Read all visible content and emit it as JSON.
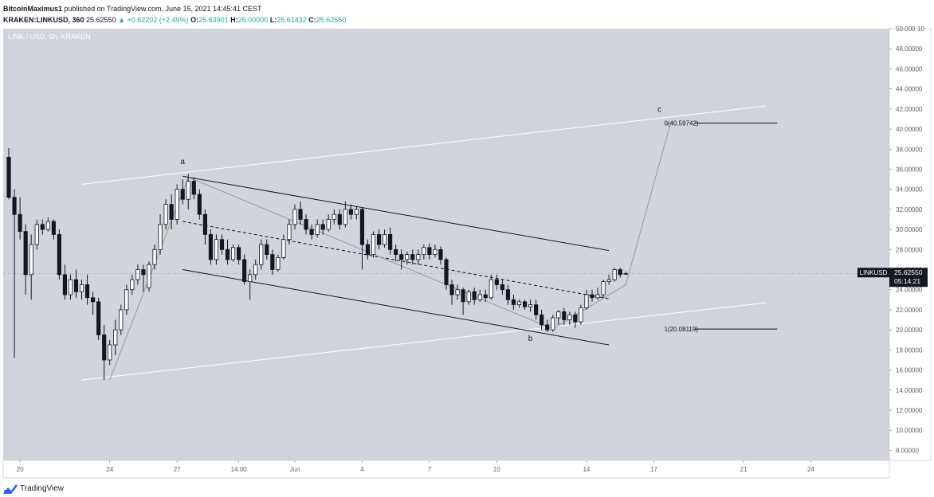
{
  "header": {
    "author": "BitcoinMaximus1",
    "published_text": "published on TradingView.com, June 15, 2021 14:45:41 CEST",
    "symbol": "KRAKEN:LINKUSD, 360",
    "last": "25.62550",
    "change": "▲ +0.62202 (+2.49%)",
    "o_label": "O:",
    "o": "25.63901",
    "h_label": "H:",
    "h": "26.00000",
    "l_label": "L:",
    "l": "25.61432",
    "c_label": "C:",
    "c": "25.62550"
  },
  "footer": {
    "brand": "TradingView"
  },
  "colors": {
    "background": "#d1d4dc",
    "up": "#ffffff",
    "down": "#131722",
    "channel": "#ffffff",
    "trend": "#131722",
    "path": "#9598a1",
    "price_tag": "#131722"
  },
  "chart_data": {
    "type": "candlestick",
    "title": "LINK / USD, 6h, KRAKEN",
    "y_axis": {
      "range": [
        7,
        50
      ],
      "ticks": [
        "8.00000",
        "10.00000",
        "12.00000",
        "14.00000",
        "16.00000",
        "18.00000",
        "20.00000",
        "22.00000",
        "24.00000",
        "26.00000",
        "28.00000",
        "30.00000",
        "32.00000",
        "34.00000",
        "36.00000",
        "38.00000",
        "40.00000",
        "42.00000",
        "44.00000",
        "46.00000",
        "48.00000",
        "50.000"
      ],
      "tick_values": [
        8,
        10,
        12,
        14,
        16,
        18,
        20,
        22,
        24,
        26,
        28,
        30,
        32,
        34,
        36,
        38,
        40,
        42,
        44,
        46,
        48,
        50
      ],
      "top_extra": "10"
    },
    "x_axis": {
      "range": [
        0,
        158
      ],
      "ticks": [
        {
          "label": "20",
          "x": 3
        },
        {
          "label": "24",
          "x": 19
        },
        {
          "label": "27",
          "x": 31
        },
        {
          "label": "14:00",
          "x": 42
        },
        {
          "label": "Jun",
          "x": 52
        },
        {
          "label": "4",
          "x": 64
        },
        {
          "label": "7",
          "x": 76
        },
        {
          "label": "10",
          "x": 88
        },
        {
          "label": "14",
          "x": 104
        },
        {
          "label": "17",
          "x": 116
        },
        {
          "label": "21",
          "x": 132
        },
        {
          "label": "24",
          "x": 144
        }
      ]
    },
    "candles": [
      {
        "x": 1,
        "o": 37.2,
        "h": 38.1,
        "c": 33.2,
        "l": 33.0
      },
      {
        "x": 2,
        "o": 33.2,
        "h": 34.0,
        "c": 31.5,
        "l": 17.2
      },
      {
        "x": 3,
        "o": 31.5,
        "h": 33.2,
        "c": 29.8,
        "l": 29.0
      },
      {
        "x": 4,
        "o": 29.8,
        "h": 30.5,
        "c": 25.5,
        "l": 23.5
      },
      {
        "x": 5,
        "o": 25.5,
        "h": 29.5,
        "c": 28.5,
        "l": 23.0
      },
      {
        "x": 6,
        "o": 28.5,
        "h": 31.0,
        "c": 30.5,
        "l": 28.0
      },
      {
        "x": 7,
        "o": 30.5,
        "h": 31.0,
        "c": 30.0,
        "l": 29.5
      },
      {
        "x": 8,
        "o": 30.0,
        "h": 31.2,
        "c": 30.8,
        "l": 29.8
      },
      {
        "x": 9,
        "o": 30.8,
        "h": 31.0,
        "c": 29.5,
        "l": 29.0
      },
      {
        "x": 10,
        "o": 29.5,
        "h": 30.0,
        "c": 25.5,
        "l": 25.0
      },
      {
        "x": 11,
        "o": 25.5,
        "h": 26.5,
        "c": 23.5,
        "l": 23.0
      },
      {
        "x": 12,
        "o": 23.5,
        "h": 25.5,
        "c": 25.0,
        "l": 23.0
      },
      {
        "x": 13,
        "o": 25.0,
        "h": 26.0,
        "c": 23.8,
        "l": 23.2
      },
      {
        "x": 14,
        "o": 23.8,
        "h": 25.0,
        "c": 24.5,
        "l": 23.0
      },
      {
        "x": 15,
        "o": 24.5,
        "h": 25.5,
        "c": 23.2,
        "l": 22.5
      },
      {
        "x": 16,
        "o": 23.2,
        "h": 23.8,
        "c": 22.8,
        "l": 21.5
      },
      {
        "x": 17,
        "o": 22.8,
        "h": 23.2,
        "c": 19.5,
        "l": 19.0
      },
      {
        "x": 18,
        "o": 19.5,
        "h": 20.5,
        "c": 17.0,
        "l": 15.0
      },
      {
        "x": 19,
        "o": 17.0,
        "h": 19.0,
        "c": 18.5,
        "l": 16.5
      },
      {
        "x": 20,
        "o": 18.5,
        "h": 21.0,
        "c": 20.0,
        "l": 17.5
      },
      {
        "x": 21,
        "o": 20.0,
        "h": 22.5,
        "c": 22.0,
        "l": 19.5
      },
      {
        "x": 22,
        "o": 22.0,
        "h": 24.5,
        "c": 24.0,
        "l": 21.5
      },
      {
        "x": 23,
        "o": 24.0,
        "h": 25.5,
        "c": 25.0,
        "l": 23.5
      },
      {
        "x": 24,
        "o": 25.0,
        "h": 26.5,
        "c": 26.0,
        "l": 24.5
      },
      {
        "x": 25,
        "o": 26.0,
        "h": 26.5,
        "c": 25.5,
        "l": 23.8
      },
      {
        "x": 26,
        "o": 24.2,
        "h": 26.8,
        "c": 26.5,
        "l": 23.8
      },
      {
        "x": 27,
        "o": 26.5,
        "h": 28.5,
        "c": 28.0,
        "l": 26.0
      },
      {
        "x": 28,
        "o": 28.0,
        "h": 31.5,
        "c": 30.5,
        "l": 27.5
      },
      {
        "x": 29,
        "o": 30.5,
        "h": 33.0,
        "c": 32.5,
        "l": 30.0
      },
      {
        "x": 30,
        "o": 32.5,
        "h": 33.5,
        "c": 31.0,
        "l": 30.0
      },
      {
        "x": 31,
        "o": 31.0,
        "h": 34.5,
        "c": 34.0,
        "l": 30.5
      },
      {
        "x": 32,
        "o": 34.0,
        "h": 35.0,
        "c": 33.0,
        "l": 32.5
      },
      {
        "x": 33,
        "o": 33.0,
        "h": 35.5,
        "c": 34.8,
        "l": 32.0
      },
      {
        "x": 34,
        "o": 34.8,
        "h": 35.2,
        "c": 33.5,
        "l": 33.0
      },
      {
        "x": 35,
        "o": 33.5,
        "h": 34.0,
        "c": 31.5,
        "l": 31.0
      },
      {
        "x": 36,
        "o": 31.5,
        "h": 32.0,
        "c": 29.5,
        "l": 28.5
      },
      {
        "x": 37,
        "o": 29.5,
        "h": 30.0,
        "c": 27.0,
        "l": 26.5
      },
      {
        "x": 38,
        "o": 27.0,
        "h": 29.5,
        "c": 29.0,
        "l": 26.5
      },
      {
        "x": 39,
        "o": 29.0,
        "h": 29.5,
        "c": 28.0,
        "l": 27.5
      },
      {
        "x": 40,
        "o": 28.0,
        "h": 29.0,
        "c": 27.0,
        "l": 26.5
      },
      {
        "x": 41,
        "o": 27.0,
        "h": 28.5,
        "c": 28.2,
        "l": 26.8
      },
      {
        "x": 42,
        "o": 28.2,
        "h": 28.5,
        "c": 27.0,
        "l": 26.5
      },
      {
        "x": 43,
        "o": 27.0,
        "h": 27.5,
        "c": 24.8,
        "l": 24.5
      },
      {
        "x": 44,
        "o": 24.8,
        "h": 26.0,
        "c": 25.5,
        "l": 23.0
      },
      {
        "x": 45,
        "o": 25.5,
        "h": 27.0,
        "c": 26.5,
        "l": 25.0
      },
      {
        "x": 46,
        "o": 26.5,
        "h": 29.0,
        "c": 28.5,
        "l": 26.0
      },
      {
        "x": 47,
        "o": 28.5,
        "h": 29.0,
        "c": 27.5,
        "l": 27.0
      },
      {
        "x": 48,
        "o": 27.5,
        "h": 28.0,
        "c": 26.0,
        "l": 25.5
      },
      {
        "x": 49,
        "o": 26.0,
        "h": 27.5,
        "c": 27.2,
        "l": 25.8
      },
      {
        "x": 50,
        "o": 27.2,
        "h": 29.5,
        "c": 29.0,
        "l": 27.0
      },
      {
        "x": 51,
        "o": 29.0,
        "h": 31.0,
        "c": 30.5,
        "l": 28.5
      },
      {
        "x": 52,
        "o": 30.5,
        "h": 32.5,
        "c": 32.0,
        "l": 30.0
      },
      {
        "x": 53,
        "o": 32.0,
        "h": 32.8,
        "c": 31.0,
        "l": 30.5
      },
      {
        "x": 54,
        "o": 31.0,
        "h": 31.5,
        "c": 30.0,
        "l": 29.5
      },
      {
        "x": 55,
        "o": 30.0,
        "h": 30.5,
        "c": 29.5,
        "l": 29.0
      },
      {
        "x": 56,
        "o": 29.5,
        "h": 31.0,
        "c": 30.5,
        "l": 29.2
      },
      {
        "x": 57,
        "o": 30.5,
        "h": 31.0,
        "c": 30.0,
        "l": 29.5
      },
      {
        "x": 58,
        "o": 30.0,
        "h": 31.5,
        "c": 31.0,
        "l": 29.8
      },
      {
        "x": 59,
        "o": 31.0,
        "h": 32.0,
        "c": 31.5,
        "l": 30.5
      },
      {
        "x": 60,
        "o": 31.5,
        "h": 32.0,
        "c": 30.5,
        "l": 30.0
      },
      {
        "x": 61,
        "o": 30.5,
        "h": 32.8,
        "c": 32.0,
        "l": 30.2
      },
      {
        "x": 62,
        "o": 32.0,
        "h": 32.5,
        "c": 31.5,
        "l": 31.0
      },
      {
        "x": 63,
        "o": 31.5,
        "h": 32.3,
        "c": 32.0,
        "l": 31.0
      },
      {
        "x": 64,
        "o": 32.0,
        "h": 32.2,
        "c": 28.5,
        "l": 26.0
      },
      {
        "x": 65,
        "o": 28.5,
        "h": 29.0,
        "c": 27.5,
        "l": 27.0
      },
      {
        "x": 66,
        "o": 27.5,
        "h": 29.8,
        "c": 29.5,
        "l": 27.2
      },
      {
        "x": 67,
        "o": 29.5,
        "h": 30.0,
        "c": 28.5,
        "l": 28.0
      },
      {
        "x": 68,
        "o": 28.5,
        "h": 30.0,
        "c": 29.5,
        "l": 28.2
      },
      {
        "x": 69,
        "o": 29.5,
        "h": 30.2,
        "c": 28.0,
        "l": 27.5
      },
      {
        "x": 70,
        "o": 28.0,
        "h": 28.5,
        "c": 27.5,
        "l": 26.8
      },
      {
        "x": 71,
        "o": 27.5,
        "h": 28.0,
        "c": 27.0,
        "l": 26.0
      },
      {
        "x": 72,
        "o": 27.0,
        "h": 27.8,
        "c": 27.5,
        "l": 26.5
      },
      {
        "x": 73,
        "o": 27.5,
        "h": 28.0,
        "c": 27.0,
        "l": 26.5
      },
      {
        "x": 74,
        "o": 27.0,
        "h": 28.0,
        "c": 27.5,
        "l": 26.5
      },
      {
        "x": 75,
        "o": 27.5,
        "h": 28.5,
        "c": 28.2,
        "l": 27.0
      },
      {
        "x": 76,
        "o": 28.2,
        "h": 28.6,
        "c": 27.5,
        "l": 27.0
      },
      {
        "x": 77,
        "o": 27.5,
        "h": 28.5,
        "c": 28.0,
        "l": 27.2
      },
      {
        "x": 78,
        "o": 28.0,
        "h": 28.3,
        "c": 27.0,
        "l": 26.5
      },
      {
        "x": 79,
        "o": 27.0,
        "h": 27.2,
        "c": 24.5,
        "l": 24.0
      },
      {
        "x": 80,
        "o": 24.5,
        "h": 25.0,
        "c": 23.5,
        "l": 22.5
      },
      {
        "x": 81,
        "o": 23.5,
        "h": 24.5,
        "c": 24.0,
        "l": 23.0
      },
      {
        "x": 82,
        "o": 24.0,
        "h": 24.2,
        "c": 22.8,
        "l": 21.5
      },
      {
        "x": 83,
        "o": 22.8,
        "h": 24.0,
        "c": 23.8,
        "l": 22.5
      },
      {
        "x": 84,
        "o": 23.8,
        "h": 24.2,
        "c": 23.0,
        "l": 22.5
      },
      {
        "x": 85,
        "o": 23.0,
        "h": 24.0,
        "c": 23.5,
        "l": 22.8
      },
      {
        "x": 86,
        "o": 23.5,
        "h": 24.0,
        "c": 23.2,
        "l": 22.8
      },
      {
        "x": 87,
        "o": 23.2,
        "h": 25.5,
        "c": 25.0,
        "l": 23.0
      },
      {
        "x": 88,
        "o": 25.0,
        "h": 25.5,
        "c": 24.5,
        "l": 24.0
      },
      {
        "x": 89,
        "o": 24.5,
        "h": 25.0,
        "c": 24.0,
        "l": 23.5
      },
      {
        "x": 90,
        "o": 24.0,
        "h": 24.5,
        "c": 23.0,
        "l": 22.5
      },
      {
        "x": 91,
        "o": 23.0,
        "h": 23.5,
        "c": 22.5,
        "l": 22.0
      },
      {
        "x": 92,
        "o": 22.5,
        "h": 23.0,
        "c": 22.8,
        "l": 22.2
      },
      {
        "x": 93,
        "o": 22.8,
        "h": 23.0,
        "c": 22.3,
        "l": 22.0
      },
      {
        "x": 94,
        "o": 22.3,
        "h": 23.0,
        "c": 22.5,
        "l": 21.8
      },
      {
        "x": 95,
        "o": 22.5,
        "h": 23.0,
        "c": 21.5,
        "l": 21.0
      },
      {
        "x": 96,
        "o": 21.5,
        "h": 22.0,
        "c": 20.5,
        "l": 20.0
      },
      {
        "x": 97,
        "o": 20.5,
        "h": 21.0,
        "c": 20.0,
        "l": 19.8
      },
      {
        "x": 98,
        "o": 20.0,
        "h": 21.5,
        "c": 21.2,
        "l": 19.8
      },
      {
        "x": 99,
        "o": 21.2,
        "h": 22.0,
        "c": 21.8,
        "l": 20.5
      },
      {
        "x": 100,
        "o": 21.8,
        "h": 22.2,
        "c": 21.0,
        "l": 20.5
      },
      {
        "x": 101,
        "o": 21.0,
        "h": 21.8,
        "c": 21.5,
        "l": 20.5
      },
      {
        "x": 102,
        "o": 21.5,
        "h": 21.8,
        "c": 20.8,
        "l": 20.2
      },
      {
        "x": 103,
        "o": 20.8,
        "h": 22.5,
        "c": 22.2,
        "l": 20.5
      },
      {
        "x": 104,
        "o": 22.2,
        "h": 24.0,
        "c": 23.5,
        "l": 22.0
      },
      {
        "x": 105,
        "o": 23.5,
        "h": 24.0,
        "c": 23.2,
        "l": 22.8
      },
      {
        "x": 106,
        "o": 23.2,
        "h": 24.2,
        "c": 23.5,
        "l": 23.0
      },
      {
        "x": 107,
        "o": 23.5,
        "h": 25.0,
        "c": 24.8,
        "l": 23.2
      },
      {
        "x": 108,
        "o": 24.8,
        "h": 25.5,
        "c": 25.0,
        "l": 24.5
      },
      {
        "x": 109,
        "o": 25.0,
        "h": 26.2,
        "c": 26.0,
        "l": 24.8
      },
      {
        "x": 110,
        "o": 26.0,
        "h": 26.2,
        "c": 25.5,
        "l": 25.2
      },
      {
        "x": 111,
        "o": 25.6,
        "h": 25.8,
        "c": 25.6,
        "l": 25.5
      }
    ],
    "channel_top": [
      [
        14,
        34.5
      ],
      [
        136,
        42.3
      ]
    ],
    "channel_bottom": [
      [
        14,
        15.0
      ],
      [
        136,
        22.7
      ]
    ],
    "trend_upper": [
      [
        32,
        35.3
      ],
      [
        108,
        27.9
      ]
    ],
    "trend_mid": [
      [
        32,
        30.8
      ],
      [
        108,
        23.1
      ]
    ],
    "trend_lower": [
      [
        32,
        26.0
      ],
      [
        108,
        18.5
      ]
    ],
    "wave_path": [
      [
        19,
        15.0
      ],
      [
        33,
        35.2
      ],
      [
        98,
        20.1
      ],
      [
        111,
        24.5
      ],
      [
        119,
        40.6
      ]
    ],
    "fib_levels": [
      {
        "label": "0(40.59742)",
        "value": 40.59742,
        "x_start": 117,
        "x_end": 138
      },
      {
        "label": "1(20.08119)",
        "value": 20.08119,
        "x_start": 117,
        "x_end": 138
      }
    ],
    "wave_labels": [
      {
        "label": "a",
        "x": 32,
        "y": 36.5
      },
      {
        "label": "b",
        "x": 94,
        "y": 18.9
      },
      {
        "label": "c",
        "x": 117,
        "y": 41.7
      }
    ],
    "price_tag": {
      "symbol": "LINKUSD",
      "price": "25.62550",
      "countdown": "05:14:21",
      "value": 25.6255
    }
  }
}
